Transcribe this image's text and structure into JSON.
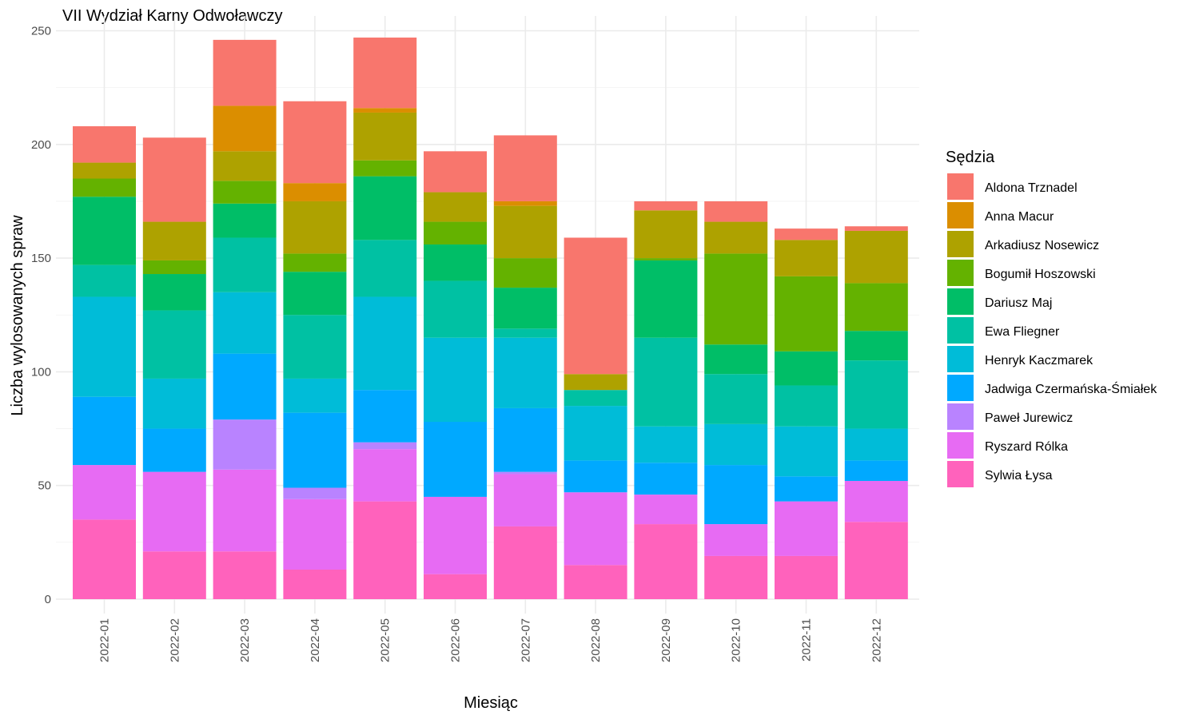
{
  "chart_data": {
    "type": "bar",
    "stacked": true,
    "title": "VII Wydział Karny Odwoławczy",
    "xlabel": "Miesiąc",
    "ylabel": "Liczba wylosowanych spraw",
    "ylim": [
      0,
      250
    ],
    "y_ticks": [
      0,
      50,
      100,
      150,
      200,
      250
    ],
    "grid": true,
    "legend_title": "Sędzia",
    "legend_position": "right",
    "categories": [
      "2022-01",
      "2022-02",
      "2022-03",
      "2022-04",
      "2022-05",
      "2022-06",
      "2022-07",
      "2022-08",
      "2022-09",
      "2022-10",
      "2022-11",
      "2022-12"
    ],
    "series": [
      {
        "name": "Sylwia Łysa",
        "color": "#FF62BC",
        "values": [
          35,
          21,
          21,
          13,
          43,
          11,
          32,
          15,
          33,
          19,
          19,
          34
        ]
      },
      {
        "name": "Ryszard Rólka",
        "color": "#E76BF3",
        "values": [
          24,
          35,
          36,
          31,
          23,
          34,
          23,
          32,
          13,
          14,
          24,
          18
        ]
      },
      {
        "name": "Paweł Jurewicz",
        "color": "#B983FF",
        "values": [
          0,
          0,
          22,
          5,
          3,
          0,
          1,
          0,
          0,
          0,
          0,
          0
        ]
      },
      {
        "name": "Jadwiga Czermańska-Śmiałek",
        "color": "#00A9FF",
        "values": [
          30,
          19,
          29,
          33,
          23,
          33,
          28,
          14,
          14,
          26,
          11,
          9
        ]
      },
      {
        "name": "Henryk Kaczmarek",
        "color": "#00BCD8",
        "values": [
          44,
          22,
          27,
          15,
          41,
          37,
          31,
          24,
          16,
          18,
          22,
          14
        ]
      },
      {
        "name": "Ewa Fliegner",
        "color": "#00C1A3",
        "values": [
          14,
          30,
          24,
          28,
          25,
          25,
          4,
          7,
          39,
          22,
          18,
          30
        ]
      },
      {
        "name": "Dariusz Maj",
        "color": "#00BE67",
        "values": [
          30,
          16,
          15,
          19,
          28,
          16,
          18,
          0,
          34,
          13,
          15,
          13
        ]
      },
      {
        "name": "Bogumił Hoszowski",
        "color": "#64B200",
        "values": [
          8,
          6,
          10,
          8,
          7,
          10,
          13,
          0,
          1,
          40,
          33,
          21
        ]
      },
      {
        "name": "Arkadiusz Nosewicz",
        "color": "#AEA200",
        "values": [
          7,
          17,
          13,
          23,
          21,
          13,
          23,
          7,
          21,
          14,
          16,
          23
        ]
      },
      {
        "name": "Anna Macur",
        "color": "#DB8E00",
        "values": [
          0,
          0,
          20,
          8,
          2,
          0,
          2,
          0,
          0,
          0,
          0,
          0
        ]
      },
      {
        "name": "Aldona Trznadel",
        "color": "#F8766D",
        "values": [
          16,
          37,
          29,
          36,
          31,
          18,
          29,
          60,
          4,
          9,
          5,
          2
        ]
      }
    ]
  }
}
